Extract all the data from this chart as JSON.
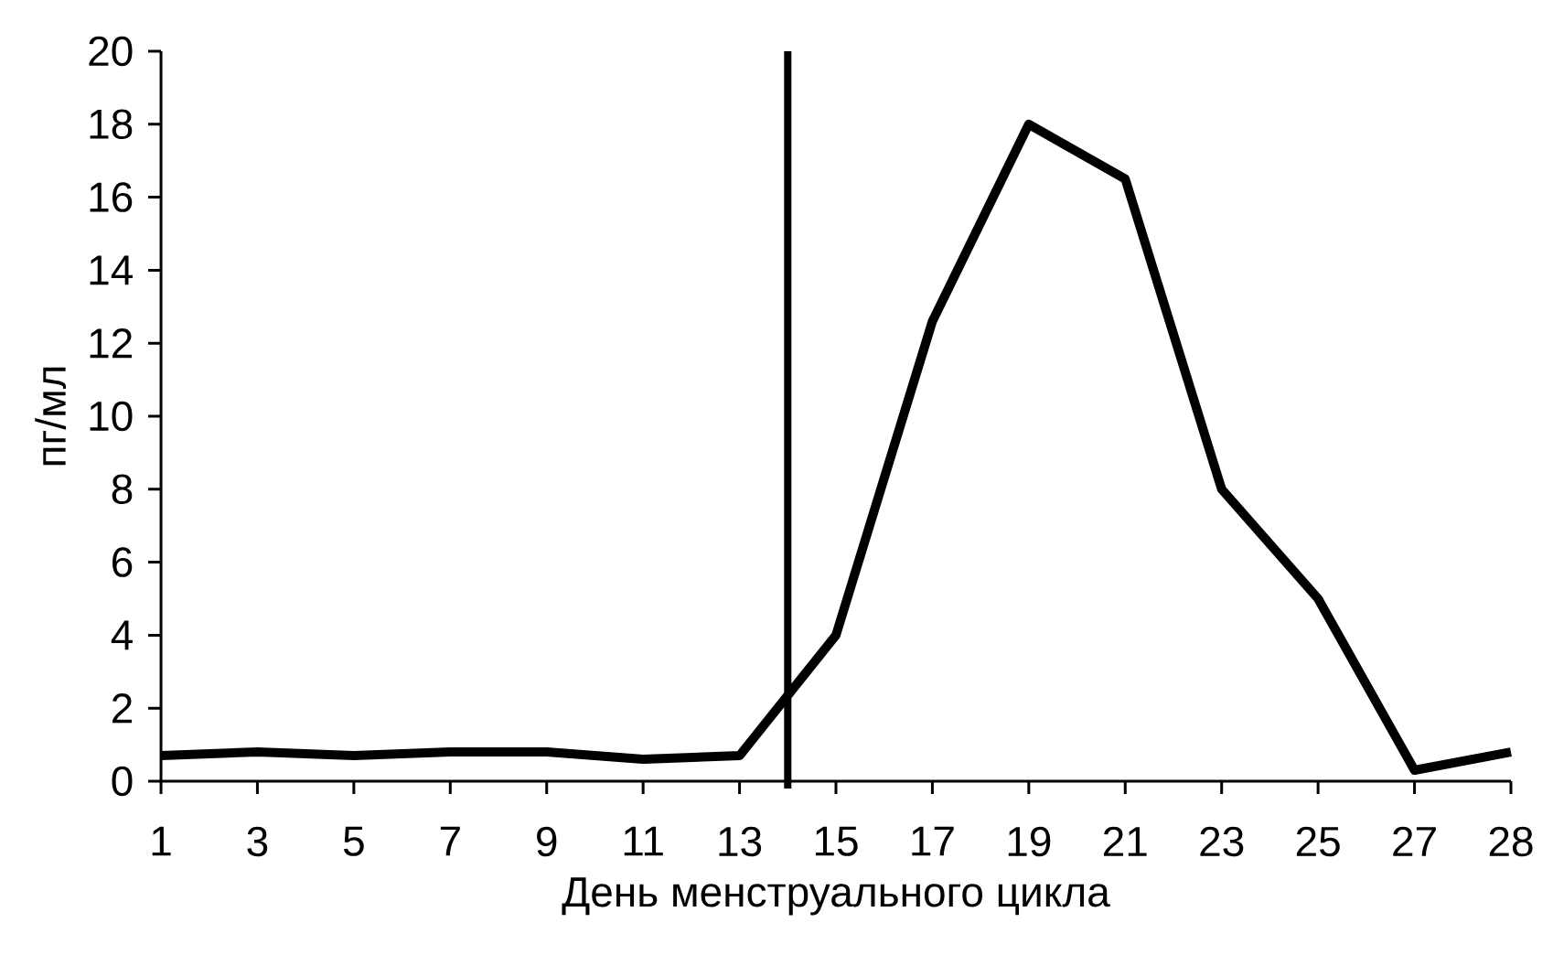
{
  "chart_data": {
    "type": "line",
    "xlabel": "День менструального цикла",
    "ylabel": "пг/мл",
    "categories": [
      "1",
      "3",
      "5",
      "7",
      "9",
      "11",
      "13",
      "15",
      "17",
      "19",
      "21",
      "23",
      "25",
      "27",
      "28"
    ],
    "series": [
      {
        "color": "#000000",
        "values": [
          0.7,
          0.8,
          0.7,
          0.8,
          0.8,
          0.6,
          0.7,
          4.0,
          12.6,
          18.0,
          16.5,
          8.0,
          5.0,
          0.3,
          0.8
        ]
      }
    ],
    "ylim": [
      0,
      20
    ],
    "yticks": [
      0,
      2,
      4,
      6,
      8,
      10,
      12,
      14,
      16,
      18,
      20
    ],
    "marker": "none",
    "line_style": "solid"
  }
}
